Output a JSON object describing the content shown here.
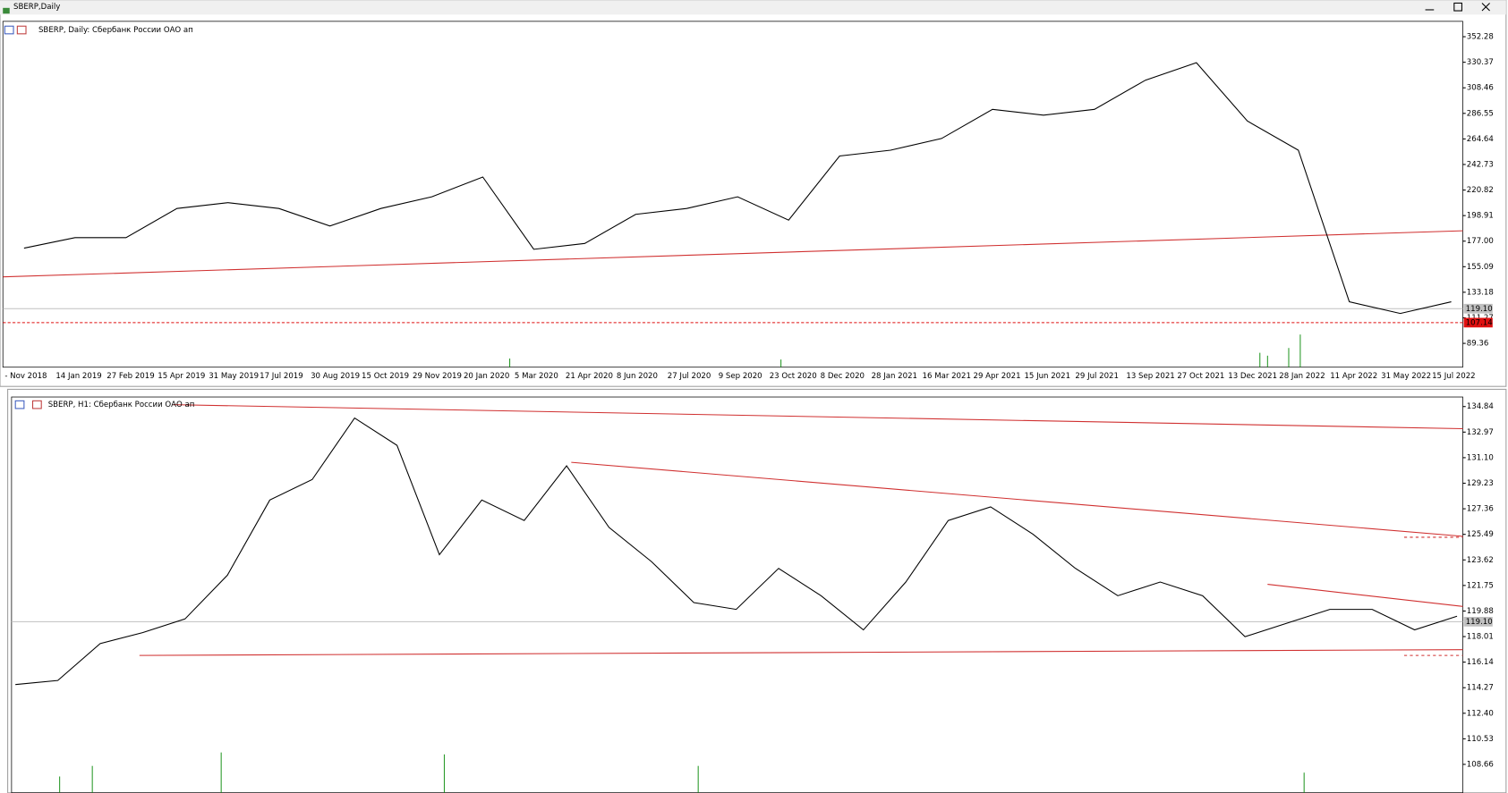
{
  "window": {
    "title": "SBERP,Daily"
  },
  "chart_data": [
    {
      "type": "line",
      "title": "SBERP, Daily:  Сбербанк России ОАО ап",
      "color": "#000000",
      "categories": [
        "- Nov 2018",
        "14 Jan 2019",
        "27 Feb 2019",
        "15 Apr 2019",
        "31 May 2019",
        "17 Jul 2019",
        "30 Aug 2019",
        "15 Oct 2019",
        "29 Nov 2019",
        "20 Jan 2020",
        "5 Mar 2020",
        "21 Apr 2020",
        "8 Jun 2020",
        "27 Jul 2020",
        "9 Sep 2020",
        "23 Oct 2020",
        "8 Dec 2020",
        "28 Jan 2021",
        "16 Mar 2021",
        "29 Apr 2021",
        "15 Jun 2021",
        "29 Jul 2021",
        "13 Sep 2021",
        "27 Oct 2021",
        "13 Dec 2021",
        "28 Jan 2022",
        "11 Apr 2022",
        "31 May 2022",
        "15 Jul 2022"
      ],
      "values": [
        171,
        180,
        180,
        205,
        210,
        205,
        190,
        205,
        215,
        232,
        170,
        175,
        200,
        205,
        215,
        195,
        250,
        255,
        265,
        290,
        285,
        290,
        315,
        330,
        280,
        255,
        125,
        115,
        125
      ],
      "ylim": [
        68.93,
        365.46
      ],
      "yticks": [
        {
          "value": 352.28,
          "label": "352.28"
        },
        {
          "value": 330.37,
          "label": "330.37"
        },
        {
          "value": 308.46,
          "label": "308.46"
        },
        {
          "value": 286.55,
          "label": "286.55"
        },
        {
          "value": 264.64,
          "label": "264.64"
        },
        {
          "value": 242.73,
          "label": "242.73"
        },
        {
          "value": 220.82,
          "label": "220.82"
        },
        {
          "value": 198.91,
          "label": "198.91"
        },
        {
          "value": 177,
          "label": "177.00"
        },
        {
          "value": 155.09,
          "label": "155.09"
        },
        {
          "value": 133.18,
          "label": "133.18"
        },
        {
          "value": 111.27,
          "label": "111.27"
        },
        {
          "value": 89.36,
          "label": "89.36"
        }
      ],
      "price_labels": [
        {
          "value": 119.1,
          "label": "119.10",
          "color": "#c0c0c0"
        },
        {
          "value": 107.14,
          "label": "107.14",
          "color": "#e01010"
        }
      ]
    },
    {
      "type": "line",
      "title": "SBERP, H1:  Сбербанк России ОАО ап",
      "color": "#000000",
      "values": [
        114.5,
        114.8,
        117.5,
        118.3,
        119.3,
        122.5,
        128,
        129.5,
        134,
        132,
        124,
        128,
        126.5,
        130.5,
        126,
        123.5,
        120.5,
        120,
        123,
        121,
        118.5,
        122,
        126.5,
        127.5,
        125.5,
        123,
        121,
        122,
        121,
        118,
        119,
        120,
        120,
        118.5,
        119.5
      ],
      "ylim": [
        106.58,
        135.54
      ],
      "yticks": [
        {
          "value": 134.84,
          "label": "134.84"
        },
        {
          "value": 132.97,
          "label": "132.97"
        },
        {
          "value": 131.1,
          "label": "131.10"
        },
        {
          "value": 129.23,
          "label": "129.23"
        },
        {
          "value": 127.36,
          "label": "127.36"
        },
        {
          "value": 125.49,
          "label": "125.49"
        },
        {
          "value": 123.62,
          "label": "123.62"
        },
        {
          "value": 121.75,
          "label": "121.75"
        },
        {
          "value": 119.88,
          "label": "119.88"
        },
        {
          "value": 118.01,
          "label": "118.01"
        },
        {
          "value": 116.14,
          "label": "116.14"
        },
        {
          "value": 114.27,
          "label": "114.27"
        },
        {
          "value": 112.4,
          "label": "112.40"
        },
        {
          "value": 110.53,
          "label": "110.53"
        },
        {
          "value": 108.66,
          "label": "108.66"
        }
      ],
      "price_labels": [
        {
          "value": 119.1,
          "label": "119.10",
          "color": "#c0c0c0"
        }
      ]
    }
  ]
}
